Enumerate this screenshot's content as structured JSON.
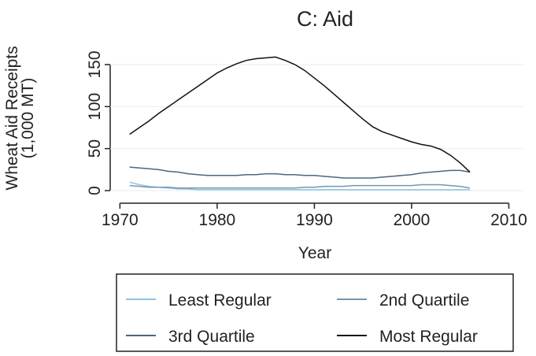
{
  "chart_data": {
    "type": "line",
    "title": "C: Aid",
    "xlabel": "Year",
    "ylabel": [
      "Wheat Aid Receipts",
      "(1,000 MT)"
    ],
    "x": [
      1971,
      1972,
      1973,
      1974,
      1975,
      1976,
      1977,
      1978,
      1979,
      1980,
      1981,
      1982,
      1983,
      1984,
      1985,
      1986,
      1987,
      1988,
      1989,
      1990,
      1991,
      1992,
      1993,
      1994,
      1995,
      1996,
      1997,
      1998,
      1999,
      2000,
      2001,
      2002,
      2003,
      2004,
      2005,
      2006
    ],
    "series": [
      {
        "name": "Least Regular",
        "color": "#8cc4e4",
        "values": [
          10,
          7,
          5,
          4,
          3,
          2,
          2,
          1,
          1,
          1,
          1,
          1,
          1,
          1,
          1,
          1,
          1,
          1,
          1,
          1,
          1,
          1,
          1,
          1,
          1,
          1,
          1,
          1,
          1,
          1,
          1,
          1,
          1,
          1,
          1,
          1
        ]
      },
      {
        "name": "2nd Quartile",
        "color": "#7896ac",
        "values": [
          6,
          5,
          4,
          4,
          4,
          3,
          3,
          3,
          3,
          3,
          3,
          3,
          3,
          3,
          3,
          3,
          3,
          3,
          4,
          4,
          5,
          5,
          5,
          6,
          6,
          6,
          6,
          6,
          6,
          6,
          7,
          7,
          7,
          6,
          5,
          3
        ]
      },
      {
        "name": "3rd Quartile",
        "color": "#48687f",
        "values": [
          28,
          27,
          26,
          25,
          23,
          22,
          20,
          19,
          18,
          18,
          18,
          18,
          19,
          19,
          20,
          20,
          19,
          19,
          18,
          18,
          17,
          16,
          15,
          15,
          15,
          15,
          16,
          17,
          18,
          19,
          21,
          22,
          23,
          24,
          24,
          22
        ]
      },
      {
        "name": "Most Regular",
        "color": "#111111",
        "values": [
          67,
          75,
          83,
          92,
          100,
          108,
          116,
          124,
          132,
          140,
          146,
          151,
          155,
          157,
          158,
          159,
          155,
          150,
          143,
          134,
          125,
          115,
          105,
          95,
          85,
          76,
          70,
          66,
          62,
          58,
          55,
          53,
          49,
          42,
          33,
          22
        ]
      }
    ],
    "xlim": [
      1969,
      2011.5
    ],
    "xticks": [
      1970,
      1980,
      1990,
      2000,
      2010
    ],
    "ylim": [
      -15,
      180
    ],
    "yticks": [
      0,
      50,
      100,
      150
    ],
    "grid": true
  }
}
